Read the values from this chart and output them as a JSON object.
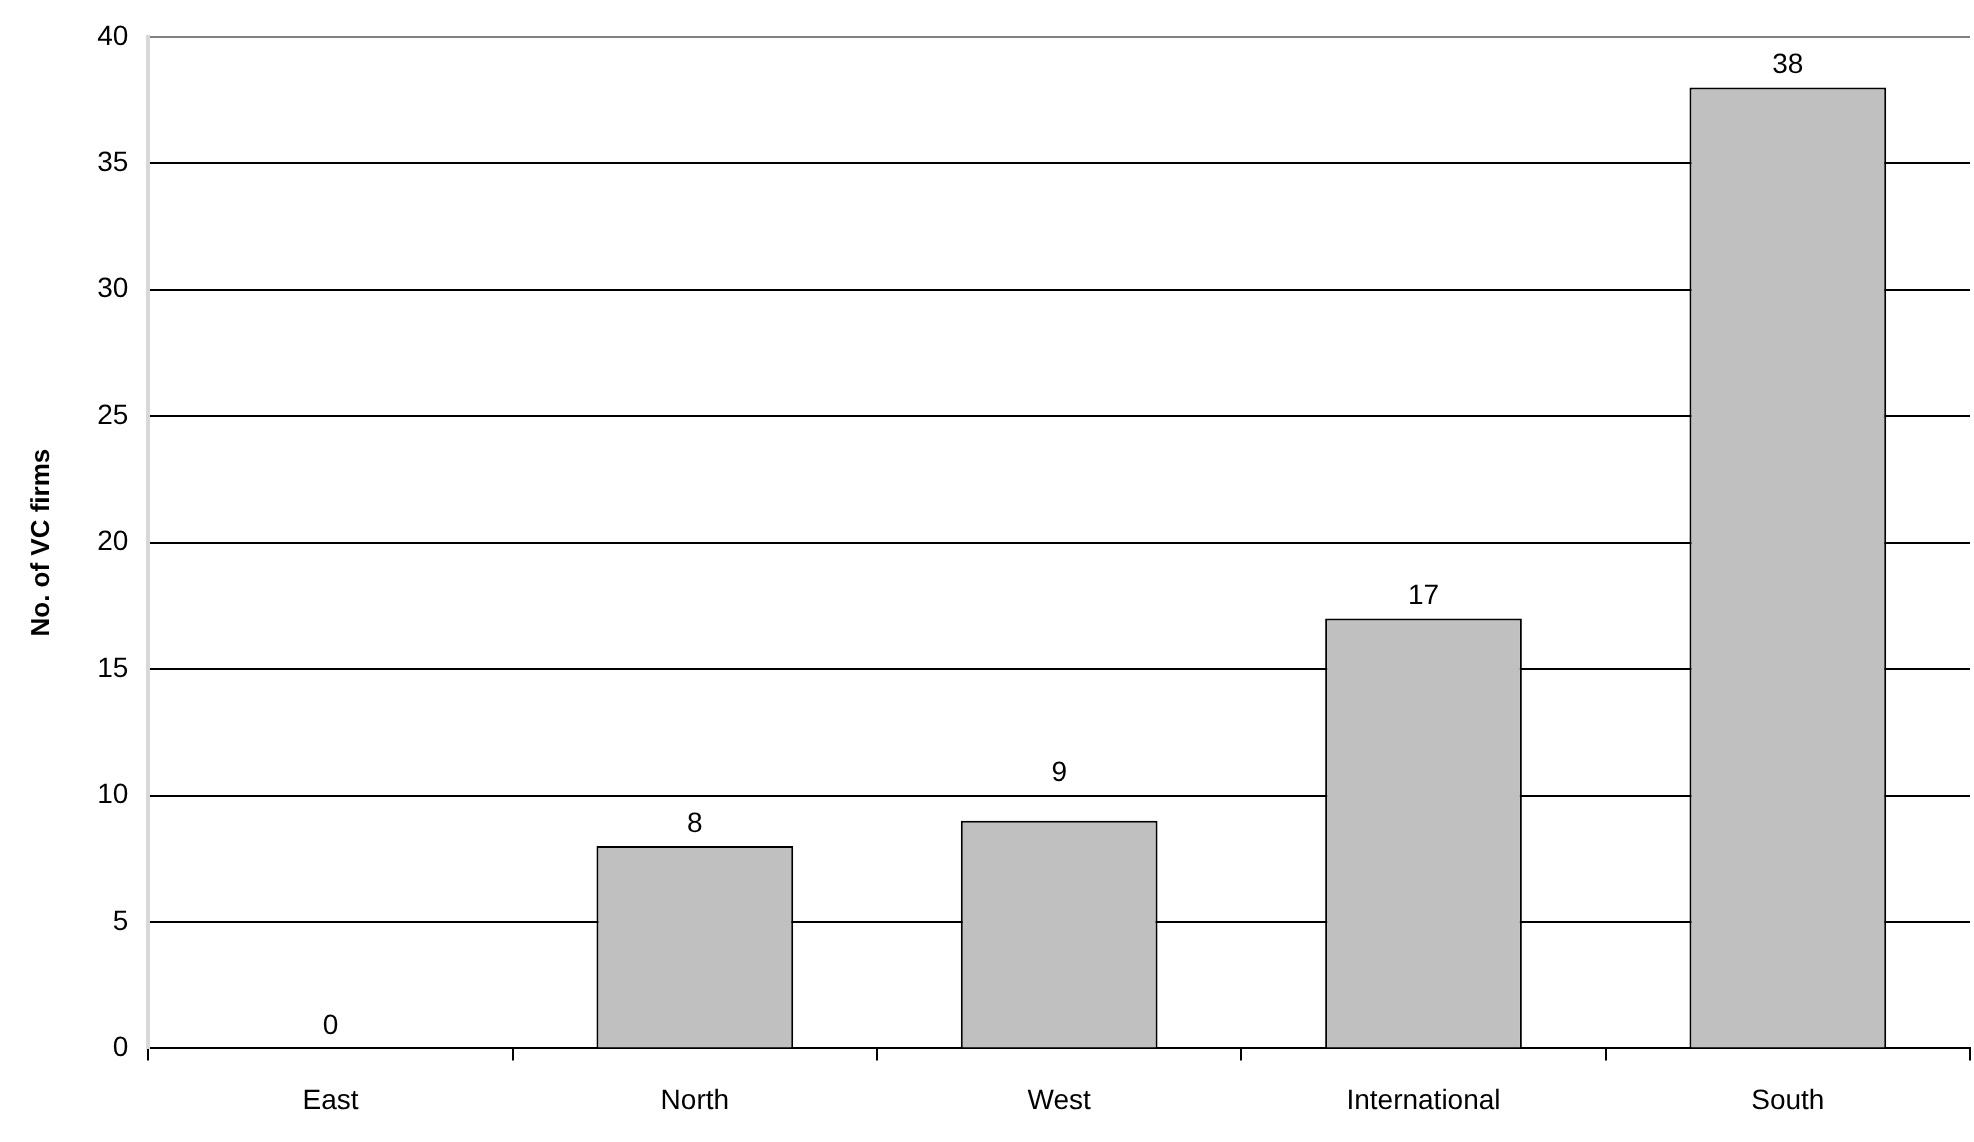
{
  "chart_data": {
    "type": "bar",
    "ylabel": "No. of VC firms",
    "categories": [
      "East",
      "North",
      "West",
      "International",
      "South"
    ],
    "values": [
      0,
      8,
      9,
      17,
      38
    ],
    "color": "#c0c0c0",
    "ylim": [
      0,
      40
    ],
    "yticks": [
      0,
      5,
      10,
      15,
      20,
      25,
      30,
      35,
      40
    ],
    "grid": "y",
    "data_labels": true
  }
}
